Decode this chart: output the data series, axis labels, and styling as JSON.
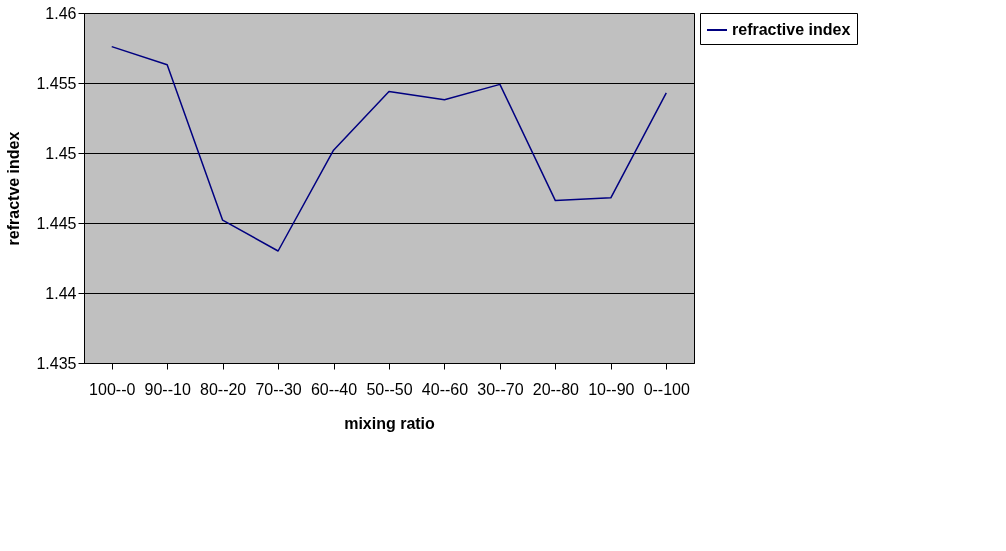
{
  "chart_data": {
    "type": "line",
    "xlabel": "mixing ratio",
    "ylabel": "refractve index",
    "categories": [
      "100--0",
      "90--10",
      "80--20",
      "70--30",
      "60--40",
      "50--50",
      "40--60",
      "30--70",
      "20--80",
      "10--90",
      "0--100"
    ],
    "series": [
      {
        "name": "refractive index",
        "color": "#000080",
        "values": [
          1.4576,
          1.4563,
          1.4452,
          1.443,
          1.4502,
          1.4544,
          1.4538,
          1.4549,
          1.4466,
          1.4468,
          1.4543
        ]
      }
    ],
    "ylim": [
      1.435,
      1.46
    ],
    "yticks": [
      1.435,
      1.44,
      1.445,
      1.45,
      1.455,
      1.46
    ],
    "grid": "y",
    "legend": "right",
    "marker": "none",
    "line_style": "solid"
  }
}
